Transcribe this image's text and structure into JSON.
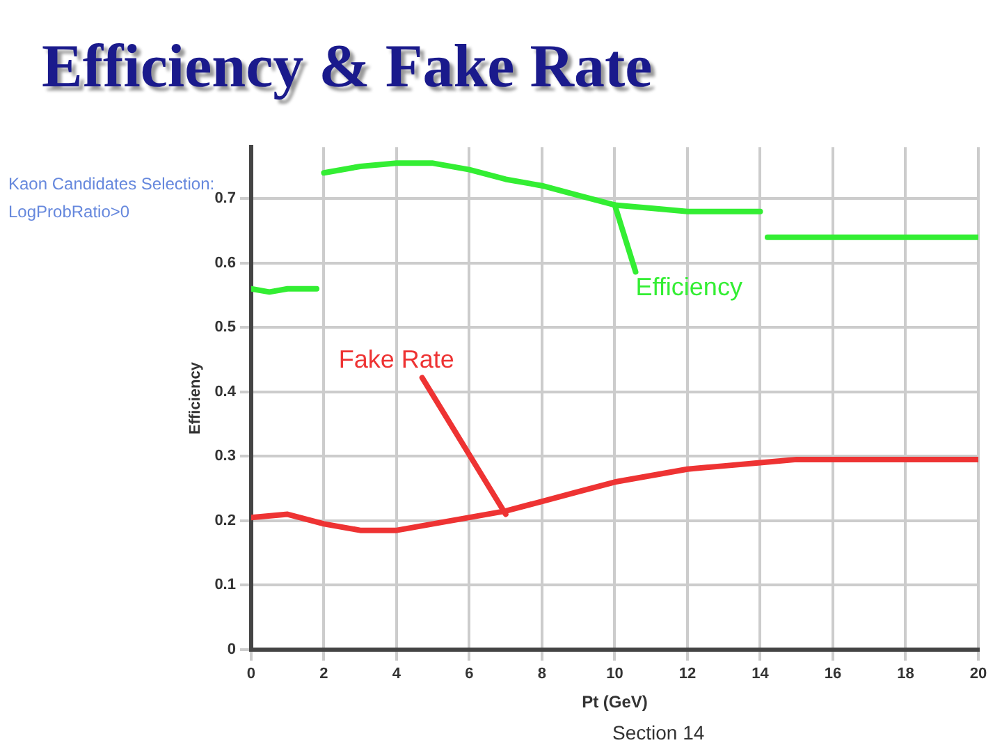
{
  "chart_data": {
    "type": "line",
    "title": "Efficiency & Fake Rate",
    "xlabel": "Pt (GeV)",
    "ylabel": "Efficiency",
    "annotations": [
      "Kaon Candidates Selection:",
      "LogProbRatio>0",
      "Section 14",
      {
        "text": "Efficiency",
        "x": 10,
        "y": 0.69
      },
      {
        "text": "Fake Rate",
        "x": 7,
        "y": 0.21
      }
    ],
    "series": [
      {
        "color": "#33ee33",
        "x": [
          0,
          0.5,
          1,
          1.8,
          1.9,
          2,
          3,
          4,
          5,
          6,
          7,
          8,
          9,
          10,
          11,
          12,
          13,
          14,
          14.1,
          14.2,
          16,
          18,
          20
        ],
        "values": [
          0.56,
          0.555,
          0.56,
          0.56,
          null,
          0.74,
          0.75,
          0.755,
          0.755,
          0.745,
          0.73,
          0.72,
          0.705,
          0.69,
          0.685,
          0.68,
          0.68,
          0.68,
          null,
          0.64,
          0.64,
          0.64,
          0.64
        ]
      },
      {
        "color": "#ee3333",
        "x": [
          0,
          1,
          2,
          3,
          4,
          5,
          6,
          7,
          8,
          9,
          10,
          11,
          12,
          13,
          14,
          15,
          16,
          17,
          18,
          19,
          20
        ],
        "values": [
          0.205,
          0.21,
          0.195,
          0.185,
          0.185,
          0.195,
          0.205,
          0.215,
          0.23,
          0.245,
          0.26,
          0.27,
          0.28,
          0.285,
          0.29,
          0.295,
          0.295,
          0.295,
          0.295,
          0.295,
          0.295
        ]
      }
    ],
    "xlim": [
      0,
      20
    ],
    "xticks": [
      0,
      2,
      4,
      6,
      8,
      10,
      12,
      14,
      16,
      18,
      20
    ],
    "ylim": [
      0,
      0.78
    ],
    "yticks": [
      0,
      {
        "value": 0.1,
        "label": "0.1"
      },
      0.2,
      0.3,
      0.4,
      0.5,
      0.6,
      0.7
    ],
    "grid": true,
    "legend": false,
    "marker": "none",
    "line_style": "solid"
  }
}
